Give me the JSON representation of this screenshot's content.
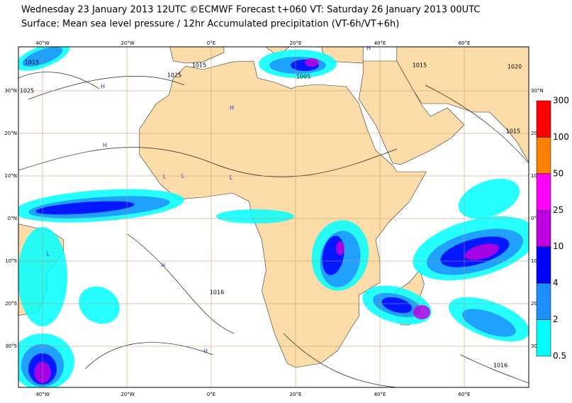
{
  "title": {
    "line1": "Wednesday 23 January 2013 12UTC ©ECMWF Forecast t+060 VT: Saturday 26 January 2013 00UTC",
    "line2": "Surface: Mean sea level pressure / 12hr Accumulated precipitation (VT-6h/VT+6h)"
  },
  "longitude_labels": [
    "40°W",
    "20°W",
    "0°E",
    "20°E",
    "40°E",
    "60°E"
  ],
  "latitude_labels": [
    "30°N",
    "20°N",
    "10°N",
    "0°N",
    "10°S",
    "20°S",
    "30°S"
  ],
  "right_latitude_labels": [
    "30°N",
    "20°N",
    "10°N",
    "0°N",
    "10°S",
    "20°S",
    "30"
  ],
  "colorbar": {
    "levels": [
      300,
      100,
      50,
      25,
      10,
      4,
      2,
      0.5
    ],
    "colors": [
      "#ff0000",
      "#ff8000",
      "#ff00ff",
      "#c000e0",
      "#0000ff",
      "#1e90ff",
      "#00ffff"
    ]
  },
  "isobar_labels": [
    "1015",
    "1025",
    "1025",
    "1015",
    "1005",
    "1015",
    "1020",
    "1015",
    "1016",
    "1016"
  ],
  "pressure_centers": [
    "H",
    "H",
    "H",
    "H",
    "H",
    "H",
    "L",
    "L",
    "L",
    "L"
  ]
}
